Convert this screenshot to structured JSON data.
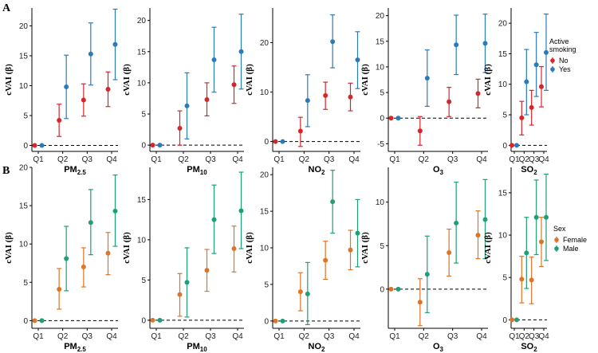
{
  "panel_tags": [
    "A",
    "B"
  ],
  "chart_data": [
    {
      "row": "A",
      "type": "scatter-errorbar",
      "legend": {
        "title_lines": [
          "Active",
          "smoking"
        ],
        "entries": [
          {
            "label": "No",
            "color": "#d7262b"
          },
          {
            "label": "Yes",
            "color": "#2b7bb9"
          }
        ]
      },
      "panels": [
        {
          "xlabel": "PM2.5",
          "xlabel_sub": {
            "base": "PM",
            "sub": "2.5"
          },
          "ylabel": "cVAI (β)",
          "categories": [
            "Q1",
            "Q2",
            "Q3",
            "Q4"
          ],
          "ylim": [
            -1,
            23
          ],
          "yticks": [
            0,
            5,
            10,
            15,
            20
          ],
          "ytick_labels": [
            "0",
            "5",
            "10",
            "15",
            "20"
          ],
          "series": [
            {
              "name": "No",
              "color": "#d7262b",
              "points": [
                {
                  "y": 0,
                  "lo": 0,
                  "hi": 0
                },
                {
                  "y": 4.2,
                  "lo": 1.5,
                  "hi": 6.9
                },
                {
                  "y": 7.6,
                  "lo": 4.9,
                  "hi": 10.3
                },
                {
                  "y": 9.4,
                  "lo": 6.5,
                  "hi": 12.3
                }
              ]
            },
            {
              "name": "Yes",
              "color": "#2b7bb9",
              "points": [
                {
                  "y": 0,
                  "lo": 0,
                  "hi": 0
                },
                {
                  "y": 9.8,
                  "lo": 4.5,
                  "hi": 15.1
                },
                {
                  "y": 15.3,
                  "lo": 10.1,
                  "hi": 20.5
                },
                {
                  "y": 16.9,
                  "lo": 11.0,
                  "hi": 22.8
                }
              ]
            }
          ]
        },
        {
          "xlabel": "PM10",
          "xlabel_sub": {
            "base": "PM",
            "sub": "10"
          },
          "ylabel": "cVAI (β)",
          "categories": [
            "Q1",
            "Q2",
            "Q3",
            "Q4"
          ],
          "ylim": [
            -1,
            22
          ],
          "yticks": [
            0,
            5,
            10,
            15,
            20
          ],
          "ytick_labels": [
            "0",
            "5",
            "10",
            "15",
            "20"
          ],
          "series": [
            {
              "name": "No",
              "color": "#d7262b",
              "points": [
                {
                  "y": 0,
                  "lo": 0,
                  "hi": 0
                },
                {
                  "y": 2.7,
                  "lo": 0,
                  "hi": 5.5
                },
                {
                  "y": 7.3,
                  "lo": 4.7,
                  "hi": 10.0
                },
                {
                  "y": 9.7,
                  "lo": 6.7,
                  "hi": 12.7
                }
              ]
            },
            {
              "name": "Yes",
              "color": "#2b7bb9",
              "points": [
                {
                  "y": 0,
                  "lo": 0,
                  "hi": 0
                },
                {
                  "y": 6.3,
                  "lo": 1.0,
                  "hi": 11.6
                },
                {
                  "y": 13.7,
                  "lo": 8.5,
                  "hi": 18.9
                },
                {
                  "y": 15.0,
                  "lo": 9.0,
                  "hi": 21.0
                }
              ]
            }
          ]
        },
        {
          "xlabel": "NO2",
          "xlabel_sub": {
            "base": "NO",
            "sub": "2"
          },
          "ylabel": "cVAI (β)",
          "categories": [
            "Q1",
            "Q2",
            "Q3",
            "Q4"
          ],
          "ylim": [
            -2,
            27
          ],
          "yticks": [
            0,
            10,
            20
          ],
          "ytick_labels": [
            "0",
            "10",
            "20"
          ],
          "series": [
            {
              "name": "No",
              "color": "#d7262b",
              "points": [
                {
                  "y": 0,
                  "lo": 0,
                  "hi": 0
                },
                {
                  "y": 2.1,
                  "lo": -1.0,
                  "hi": 4.9
                },
                {
                  "y": 9.3,
                  "lo": 6.5,
                  "hi": 12.0
                },
                {
                  "y": 9.0,
                  "lo": 6.2,
                  "hi": 11.8
                }
              ]
            },
            {
              "name": "Yes",
              "color": "#2b7bb9",
              "points": [
                {
                  "y": 0,
                  "lo": 0,
                  "hi": 0
                },
                {
                  "y": 8.3,
                  "lo": 3.0,
                  "hi": 13.5
                },
                {
                  "y": 20.2,
                  "lo": 14.9,
                  "hi": 25.6
                },
                {
                  "y": 16.5,
                  "lo": 10.7,
                  "hi": 22.2
                }
              ]
            }
          ]
        },
        {
          "xlabel": "O3",
          "xlabel_sub": {
            "base": "O",
            "sub": "3"
          },
          "ylabel": "cVAI (β)",
          "categories": [
            "Q1",
            "Q2",
            "Q3",
            "Q4"
          ],
          "ylim": [
            -6.5,
            21.5
          ],
          "yticks": [
            -5,
            0,
            5,
            10,
            15,
            20
          ],
          "ytick_labels": [
            "-5",
            "0",
            "5",
            "10",
            "15",
            "20"
          ],
          "series": [
            {
              "name": "No",
              "color": "#d7262b",
              "points": [
                {
                  "y": 0,
                  "lo": 0,
                  "hi": 0
                },
                {
                  "y": -2.5,
                  "lo": -5.3,
                  "hi": 0.3
                },
                {
                  "y": 3.2,
                  "lo": 0.3,
                  "hi": 6.0
                },
                {
                  "y": 4.8,
                  "lo": 2.0,
                  "hi": 7.6
                }
              ]
            },
            {
              "name": "Yes",
              "color": "#2b7bb9",
              "points": [
                {
                  "y": 0,
                  "lo": 0,
                  "hi": 0
                },
                {
                  "y": 7.8,
                  "lo": 2.3,
                  "hi": 13.3
                },
                {
                  "y": 14.3,
                  "lo": 8.5,
                  "hi": 20.1
                },
                {
                  "y": 14.6,
                  "lo": 8.9,
                  "hi": 20.3
                }
              ]
            }
          ]
        },
        {
          "xlabel": "SO2",
          "xlabel_sub": {
            "base": "SO",
            "sub": "2"
          },
          "ylabel": "cVAI (β)",
          "categories": [
            "Q1",
            "Q2",
            "Q3",
            "Q4"
          ],
          "ylim": [
            -1,
            22.5
          ],
          "yticks": [
            0,
            5,
            10,
            15,
            20
          ],
          "ytick_labels": [
            "0",
            "5",
            "10",
            "15",
            "20"
          ],
          "compact": true,
          "series": [
            {
              "name": "No",
              "color": "#d7262b",
              "points": [
                {
                  "y": 0,
                  "lo": 0,
                  "hi": 0
                },
                {
                  "y": 4.5,
                  "lo": 1.7,
                  "hi": 7.2
                },
                {
                  "y": 6.2,
                  "lo": 3.3,
                  "hi": 9.0
                },
                {
                  "y": 9.6,
                  "lo": 6.3,
                  "hi": 12.9
                }
              ]
            },
            {
              "name": "Yes",
              "color": "#2b7bb9",
              "points": [
                {
                  "y": 0,
                  "lo": 0,
                  "hi": 0
                },
                {
                  "y": 10.4,
                  "lo": 5.0,
                  "hi": 15.7
                },
                {
                  "y": 13.2,
                  "lo": 8.0,
                  "hi": 18.5
                },
                {
                  "y": 15.2,
                  "lo": 9.0,
                  "hi": 21.5
                }
              ]
            }
          ]
        }
      ]
    },
    {
      "row": "B",
      "type": "scatter-errorbar",
      "legend": {
        "title_lines": [
          "Sex"
        ],
        "entries": [
          {
            "label": "Female",
            "color": "#e07426"
          },
          {
            "label": "Male",
            "color": "#1f9e77"
          }
        ]
      },
      "panels": [
        {
          "xlabel": "PM2.5",
          "xlabel_sub": {
            "base": "PM",
            "sub": "2.5"
          },
          "ylabel": "cVAI (β)",
          "categories": [
            "Q1",
            "Q2",
            "Q3",
            "Q4"
          ],
          "ylim": [
            -1,
            20
          ],
          "yticks": [
            0,
            5,
            10,
            15,
            20
          ],
          "ytick_labels": [
            "0",
            "5",
            "10",
            "15",
            "20"
          ],
          "series": [
            {
              "name": "Female",
              "color": "#e07426",
              "points": [
                {
                  "y": 0,
                  "lo": 0,
                  "hi": 0
                },
                {
                  "y": 4.1,
                  "lo": 1.5,
                  "hi": 6.8
                },
                {
                  "y": 7.0,
                  "lo": 4.4,
                  "hi": 9.5
                },
                {
                  "y": 8.8,
                  "lo": 6.0,
                  "hi": 11.5
                }
              ]
            },
            {
              "name": "Male",
              "color": "#1f9e77",
              "points": [
                {
                  "y": 0,
                  "lo": 0,
                  "hi": 0
                },
                {
                  "y": 8.1,
                  "lo": 3.9,
                  "hi": 12.3
                },
                {
                  "y": 12.8,
                  "lo": 8.6,
                  "hi": 17.1
                },
                {
                  "y": 14.3,
                  "lo": 9.7,
                  "hi": 19.0
                }
              ]
            }
          ]
        },
        {
          "xlabel": "PM10",
          "xlabel_sub": {
            "base": "PM",
            "sub": "10"
          },
          "ylabel": "cVAI (β)",
          "categories": [
            "Q1",
            "Q2",
            "Q3",
            "Q4"
          ],
          "ylim": [
            -1,
            19
          ],
          "yticks": [
            0,
            5,
            10,
            15
          ],
          "ytick_labels": [
            "0",
            "5",
            "10",
            "15"
          ],
          "series": [
            {
              "name": "Female",
              "color": "#e07426",
              "points": [
                {
                  "y": 0,
                  "lo": 0,
                  "hi": 0
                },
                {
                  "y": 3.2,
                  "lo": 0.5,
                  "hi": 5.8
                },
                {
                  "y": 6.2,
                  "lo": 3.6,
                  "hi": 8.8
                },
                {
                  "y": 8.9,
                  "lo": 6.0,
                  "hi": 11.7
                }
              ]
            },
            {
              "name": "Male",
              "color": "#1f9e77",
              "points": [
                {
                  "y": 0,
                  "lo": 0,
                  "hi": 0
                },
                {
                  "y": 4.7,
                  "lo": 0.4,
                  "hi": 9.0
                },
                {
                  "y": 12.5,
                  "lo": 8.3,
                  "hi": 16.8
                },
                {
                  "y": 13.6,
                  "lo": 8.9,
                  "hi": 18.4
                }
              ]
            }
          ]
        },
        {
          "xlabel": "NO2",
          "xlabel_sub": {
            "base": "NO",
            "sub": "2"
          },
          "ylabel": "cVAI (β)",
          "categories": [
            "Q1",
            "Q2",
            "Q3",
            "Q4"
          ],
          "ylim": [
            -1,
            21
          ],
          "yticks": [
            0,
            5,
            10,
            15,
            20
          ],
          "ytick_labels": [
            "0",
            "5",
            "10",
            "15",
            "20"
          ],
          "series": [
            {
              "name": "Female",
              "color": "#e07426",
              "points": [
                {
                  "y": 0,
                  "lo": 0,
                  "hi": 0
                },
                {
                  "y": 4.0,
                  "lo": 1.4,
                  "hi": 6.6
                },
                {
                  "y": 8.3,
                  "lo": 5.7,
                  "hi": 10.9
                },
                {
                  "y": 9.7,
                  "lo": 7.0,
                  "hi": 12.4
                }
              ]
            },
            {
              "name": "Male",
              "color": "#1f9e77",
              "points": [
                {
                  "y": 0,
                  "lo": 0,
                  "hi": 0
                },
                {
                  "y": 3.7,
                  "lo": -0.5,
                  "hi": 8.0
                },
                {
                  "y": 16.3,
                  "lo": 12.0,
                  "hi": 20.6
                },
                {
                  "y": 12.0,
                  "lo": 7.4,
                  "hi": 16.6
                }
              ]
            }
          ]
        },
        {
          "xlabel": "O3",
          "xlabel_sub": {
            "base": "O",
            "sub": "3"
          },
          "ylabel": "cVAI (β)",
          "categories": [
            "Q1",
            "Q2",
            "Q3",
            "Q4"
          ],
          "ylim": [
            -4.5,
            14
          ],
          "yticks": [
            0,
            5,
            10
          ],
          "ytick_labels": [
            "0",
            "5",
            "10"
          ],
          "series": [
            {
              "name": "Female",
              "color": "#e07426",
              "points": [
                {
                  "y": 0,
                  "lo": 0,
                  "hi": 0
                },
                {
                  "y": -1.5,
                  "lo": -4.2,
                  "hi": 1.2
                },
                {
                  "y": 4.2,
                  "lo": 1.5,
                  "hi": 6.9
                },
                {
                  "y": 6.2,
                  "lo": 3.5,
                  "hi": 9.0
                }
              ]
            },
            {
              "name": "Male",
              "color": "#1f9e77",
              "points": [
                {
                  "y": 0,
                  "lo": 0,
                  "hi": 0
                },
                {
                  "y": 1.7,
                  "lo": -2.7,
                  "hi": 6.1
                },
                {
                  "y": 7.6,
                  "lo": 3.0,
                  "hi": 12.3
                },
                {
                  "y": 8.0,
                  "lo": 3.5,
                  "hi": 12.6
                }
              ]
            }
          ]
        },
        {
          "xlabel": "SO2",
          "xlabel_sub": {
            "base": "SO",
            "sub": "2"
          },
          "ylabel": "cVAI (β)",
          "categories": [
            "Q1",
            "Q2",
            "Q3",
            "Q4"
          ],
          "ylim": [
            -1,
            18
          ],
          "yticks": [
            0,
            5,
            10,
            15
          ],
          "ytick_labels": [
            "0",
            "5",
            "10",
            "15"
          ],
          "compact": true,
          "series": [
            {
              "name": "Female",
              "color": "#e07426",
              "points": [
                {
                  "y": 0,
                  "lo": 0,
                  "hi": 0
                },
                {
                  "y": 4.8,
                  "lo": 2.0,
                  "hi": 7.5
                },
                {
                  "y": 4.7,
                  "lo": 1.9,
                  "hi": 7.4
                },
                {
                  "y": 9.2,
                  "lo": 6.3,
                  "hi": 12.1
                }
              ]
            },
            {
              "name": "Male",
              "color": "#1f9e77",
              "points": [
                {
                  "y": 0,
                  "lo": 0,
                  "hi": 0
                },
                {
                  "y": 7.9,
                  "lo": 3.7,
                  "hi": 12.1
                },
                {
                  "y": 12.1,
                  "lo": 7.7,
                  "hi": 16.5
                },
                {
                  "y": 12.1,
                  "lo": 7.0,
                  "hi": 17.2
                }
              ]
            }
          ]
        }
      ]
    }
  ]
}
